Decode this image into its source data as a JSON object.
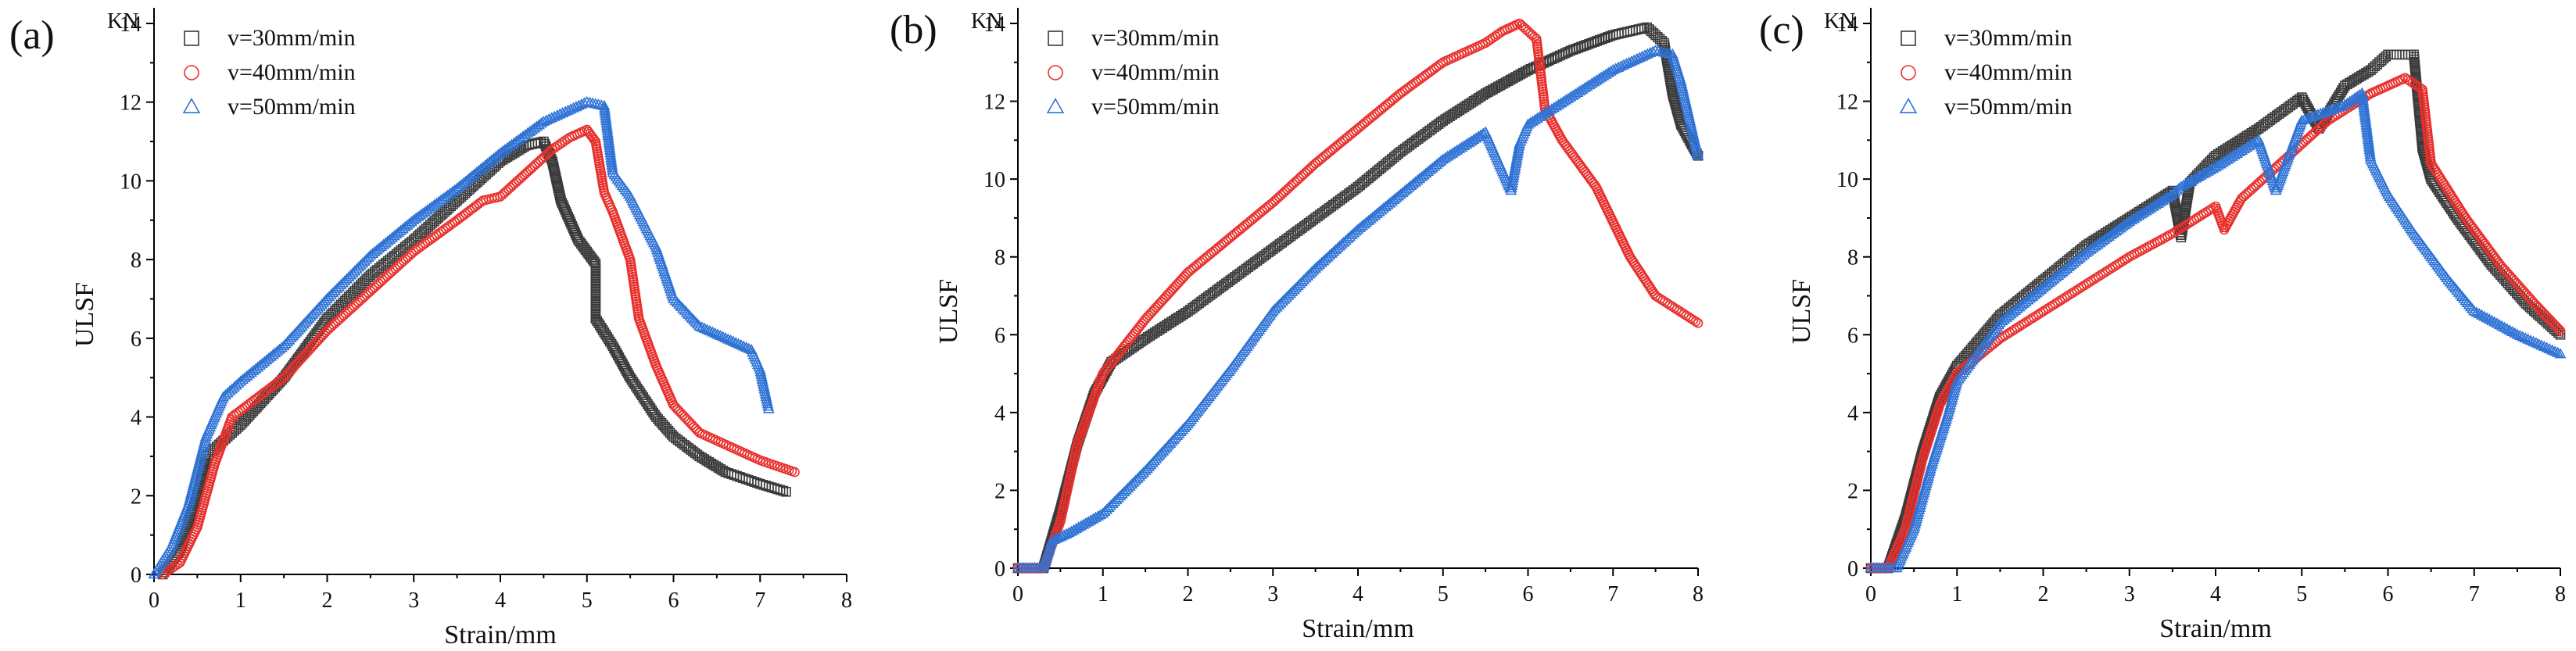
{
  "figure": {
    "colors": {
      "s30": "#3a3a3a",
      "s40": "#e8302c",
      "s50": "#2f73d6"
    },
    "marker_names": {
      "s30": "square",
      "s40": "circle",
      "s50": "triangle"
    }
  },
  "chart_data": [
    {
      "type": "scatter",
      "panel_label": "(a)",
      "unit_label": "KN",
      "xlabel": "Strain/mm",
      "ylabel": "ULSF",
      "xlim": [
        0,
        8
      ],
      "ylim": [
        0,
        14
      ],
      "x_ticks": [
        "0",
        "1",
        "2",
        "3",
        "4",
        "5",
        "6",
        "7",
        "8"
      ],
      "y_ticks": [
        "0",
        "2",
        "4",
        "6",
        "8",
        "10",
        "12",
        "14"
      ],
      "legend": [
        "v=30mm/min",
        "v=40mm/min",
        "v=50mm/min"
      ],
      "series": [
        {
          "name": "v=30mm/min",
          "key": "s30",
          "x": [
            0.1,
            0.3,
            0.5,
            0.6,
            0.8,
            1.0,
            1.5,
            2.0,
            2.5,
            3.0,
            3.5,
            4.0,
            4.3,
            4.5,
            4.6,
            4.7,
            4.9,
            5.0,
            5.1,
            5.1,
            5.3,
            5.5,
            5.8,
            6.0,
            6.3,
            6.6,
            7.0,
            7.3
          ],
          "y": [
            0,
            0.6,
            2.0,
            3.0,
            3.4,
            3.8,
            5.0,
            6.5,
            7.6,
            8.5,
            9.5,
            10.5,
            10.9,
            11.0,
            10.5,
            9.5,
            8.5,
            8.2,
            7.9,
            6.5,
            5.8,
            5.0,
            4.0,
            3.5,
            3.0,
            2.6,
            2.3,
            2.1
          ]
        },
        {
          "name": "v=40mm/min",
          "key": "s40",
          "x": [
            0.1,
            0.3,
            0.5,
            0.7,
            0.9,
            1.2,
            1.5,
            2.0,
            2.5,
            3.0,
            3.5,
            3.8,
            4.0,
            4.3,
            4.6,
            4.8,
            5.0,
            5.1,
            5.2,
            5.3,
            5.5,
            5.6,
            5.8,
            6.0,
            6.3,
            6.7,
            7.0,
            7.4
          ],
          "y": [
            0,
            0.3,
            1.2,
            2.8,
            4.0,
            4.5,
            5.0,
            6.2,
            7.2,
            8.2,
            9.0,
            9.5,
            9.6,
            10.2,
            10.8,
            11.1,
            11.3,
            11.0,
            9.7,
            9.2,
            8.0,
            6.5,
            5.3,
            4.3,
            3.6,
            3.2,
            2.9,
            2.6
          ]
        },
        {
          "name": "v=50mm/min",
          "key": "s50",
          "x": [
            0,
            0.2,
            0.4,
            0.6,
            0.8,
            1.0,
            1.5,
            2.0,
            2.5,
            3.0,
            3.5,
            4.0,
            4.5,
            5.0,
            5.2,
            5.3,
            5.5,
            5.8,
            6.0,
            6.3,
            6.6,
            6.9,
            7.0,
            7.1
          ],
          "y": [
            0,
            0.7,
            1.8,
            3.5,
            4.5,
            4.9,
            5.8,
            7.0,
            8.1,
            9.0,
            9.8,
            10.7,
            11.5,
            12.0,
            11.9,
            10.2,
            9.6,
            8.3,
            7.0,
            6.3,
            6.0,
            5.7,
            5.2,
            4.2
          ]
        }
      ]
    },
    {
      "type": "scatter",
      "panel_label": "(b)",
      "unit_label": "KN",
      "xlabel": "Strain/mm",
      "ylabel": "ULSF",
      "xlim": [
        0,
        8
      ],
      "ylim": [
        0,
        14
      ],
      "x_ticks": [
        "0",
        "1",
        "2",
        "3",
        "4",
        "5",
        "6",
        "7",
        "8"
      ],
      "y_ticks": [
        "0",
        "2",
        "4",
        "6",
        "8",
        "10",
        "12",
        "14"
      ],
      "legend": [
        "v=30mm/min",
        "v=40mm/min",
        "v=50mm/min"
      ],
      "series": [
        {
          "name": "v=30mm/min",
          "key": "s30",
          "x": [
            0,
            0.3,
            0.5,
            0.7,
            0.9,
            1.1,
            1.5,
            2.0,
            2.5,
            3.0,
            3.5,
            4.0,
            4.5,
            5.0,
            5.5,
            6.0,
            6.5,
            7.0,
            7.4,
            7.6,
            7.7,
            7.8,
            8.0
          ],
          "y": [
            0,
            0,
            1.5,
            3.2,
            4.5,
            5.3,
            5.9,
            6.6,
            7.4,
            8.2,
            9.0,
            9.8,
            10.7,
            11.5,
            12.2,
            12.8,
            13.3,
            13.7,
            13.9,
            13.5,
            12.2,
            11.4,
            10.6
          ]
        },
        {
          "name": "v=40mm/min",
          "key": "s40",
          "x": [
            0,
            0.3,
            0.5,
            0.7,
            1.0,
            1.5,
            2.0,
            2.5,
            3.0,
            3.5,
            4.0,
            4.5,
            5.0,
            5.5,
            5.7,
            5.9,
            6.1,
            6.2,
            6.4,
            6.8,
            7.2,
            7.5,
            8.0
          ],
          "y": [
            0,
            0,
            1.2,
            3.2,
            5.0,
            6.4,
            7.6,
            8.5,
            9.4,
            10.4,
            11.3,
            12.2,
            13.0,
            13.5,
            13.8,
            14.0,
            13.6,
            11.8,
            11.0,
            9.8,
            8.0,
            7.0,
            6.3
          ]
        },
        {
          "name": "v=50mm/min",
          "key": "s50",
          "x": [
            0,
            0.3,
            0.4,
            0.6,
            1.0,
            1.5,
            2.0,
            2.5,
            3.0,
            3.5,
            4.0,
            4.5,
            5.0,
            5.5,
            5.8,
            5.9,
            6.0,
            6.5,
            7.0,
            7.5,
            7.7,
            7.8,
            8.0
          ],
          "y": [
            0,
            0,
            0.7,
            0.9,
            1.4,
            2.5,
            3.7,
            5.1,
            6.6,
            7.7,
            8.7,
            9.6,
            10.5,
            11.2,
            9.7,
            10.9,
            11.4,
            12.1,
            12.8,
            13.3,
            13.2,
            12.5,
            10.6
          ]
        }
      ]
    },
    {
      "type": "scatter",
      "panel_label": "(c)",
      "unit_label": "KN",
      "xlabel": "Strain/mm",
      "ylabel": "ULSF",
      "xlim": [
        0,
        8
      ],
      "ylim": [
        0,
        14
      ],
      "x_ticks": [
        "0",
        "1",
        "2",
        "3",
        "4",
        "5",
        "6",
        "7",
        "8"
      ],
      "y_ticks": [
        "0",
        "2",
        "4",
        "6",
        "8",
        "10",
        "12",
        "14"
      ],
      "legend": [
        "v=30mm/min",
        "v=40mm/min",
        "v=50mm/min"
      ],
      "series": [
        {
          "name": "v=30mm/min",
          "key": "s30",
          "x": [
            0,
            0.2,
            0.4,
            0.6,
            0.8,
            1.0,
            1.5,
            2.0,
            2.5,
            3.0,
            3.5,
            3.6,
            3.7,
            4.0,
            4.5,
            5.0,
            5.2,
            5.5,
            5.8,
            6.0,
            6.3,
            6.4,
            6.5,
            6.8,
            7.2,
            7.6,
            8.0
          ],
          "y": [
            0,
            0,
            1.3,
            3.0,
            4.4,
            5.2,
            6.5,
            7.4,
            8.3,
            9.0,
            9.7,
            8.5,
            9.9,
            10.6,
            11.3,
            12.1,
            11.3,
            12.4,
            12.8,
            13.2,
            13.2,
            10.8,
            10.0,
            9.0,
            7.8,
            6.8,
            6.0
          ]
        },
        {
          "name": "v=40mm/min",
          "key": "s40",
          "x": [
            0,
            0.2,
            0.4,
            0.6,
            0.8,
            1.0,
            1.5,
            2.0,
            2.5,
            3.0,
            3.5,
            4.0,
            4.1,
            4.3,
            4.8,
            5.3,
            5.8,
            6.0,
            6.2,
            6.4,
            6.5,
            6.9,
            7.3,
            7.7,
            8.0
          ],
          "y": [
            0,
            0,
            1.0,
            2.8,
            4.2,
            5.0,
            5.9,
            6.6,
            7.3,
            8.0,
            8.6,
            9.3,
            8.7,
            9.5,
            10.5,
            11.5,
            12.2,
            12.4,
            12.6,
            12.3,
            10.4,
            9.0,
            7.8,
            6.8,
            6.1
          ]
        },
        {
          "name": "v=50mm/min",
          "key": "s50",
          "x": [
            0,
            0.3,
            0.5,
            0.7,
            0.9,
            1.0,
            1.5,
            2.0,
            2.5,
            3.0,
            3.5,
            3.6,
            4.0,
            4.5,
            4.7,
            5.0,
            5.5,
            5.7,
            5.8,
            6.0,
            6.3,
            6.7,
            7.0,
            7.5,
            8.0
          ],
          "y": [
            0,
            0,
            1.0,
            2.6,
            4.0,
            4.8,
            6.3,
            7.2,
            8.1,
            8.9,
            9.6,
            9.8,
            10.3,
            11.0,
            9.7,
            11.5,
            11.9,
            12.2,
            10.5,
            9.6,
            8.6,
            7.4,
            6.6,
            6.0,
            5.5
          ]
        }
      ]
    }
  ]
}
